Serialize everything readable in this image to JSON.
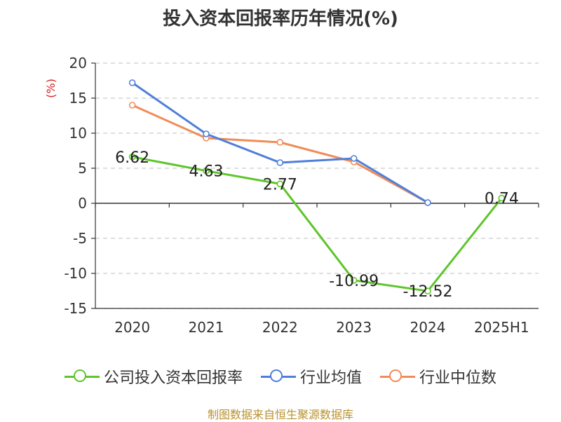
{
  "title": "投入资本回报率历年情况(%)",
  "source": "制图数据来自恒生聚源数据库",
  "colors": {
    "company": "#5ec52a",
    "industry_avg": "#4f7fda",
    "industry_median": "#f08c58",
    "axis_label": "#d42020"
  },
  "chart_data": {
    "type": "line",
    "title": "投入资本回报率历年情况(%)",
    "ylabel": "(%)",
    "ylim": [
      -15,
      20
    ],
    "yticks": [
      20,
      15,
      10,
      5,
      0,
      -5,
      -10,
      -15
    ],
    "ytick_labels": [
      "20",
      "15",
      "10",
      "5",
      "0",
      "-5",
      "-10",
      "-15"
    ],
    "grid": true,
    "legend_position": "bottom",
    "categories": [
      "2020",
      "2021",
      "2022",
      "2023",
      "2024",
      "2025H1"
    ],
    "series": [
      {
        "name": "公司投入资本回报率",
        "values": [
          6.62,
          4.63,
          2.77,
          -10.99,
          -12.52,
          0.74
        ],
        "labels": [
          "6.62",
          "4.63",
          "2.77",
          "-10.99",
          "-12.52",
          "0.74"
        ],
        "color": "#5ec52a"
      },
      {
        "name": "行业均值",
        "values": [
          17.2,
          9.9,
          5.8,
          6.4,
          0.1,
          null
        ],
        "color": "#4f7fda"
      },
      {
        "name": "行业中位数",
        "values": [
          14.0,
          9.3,
          8.7,
          5.9,
          0.1,
          null
        ],
        "color": "#f08c58"
      }
    ]
  }
}
